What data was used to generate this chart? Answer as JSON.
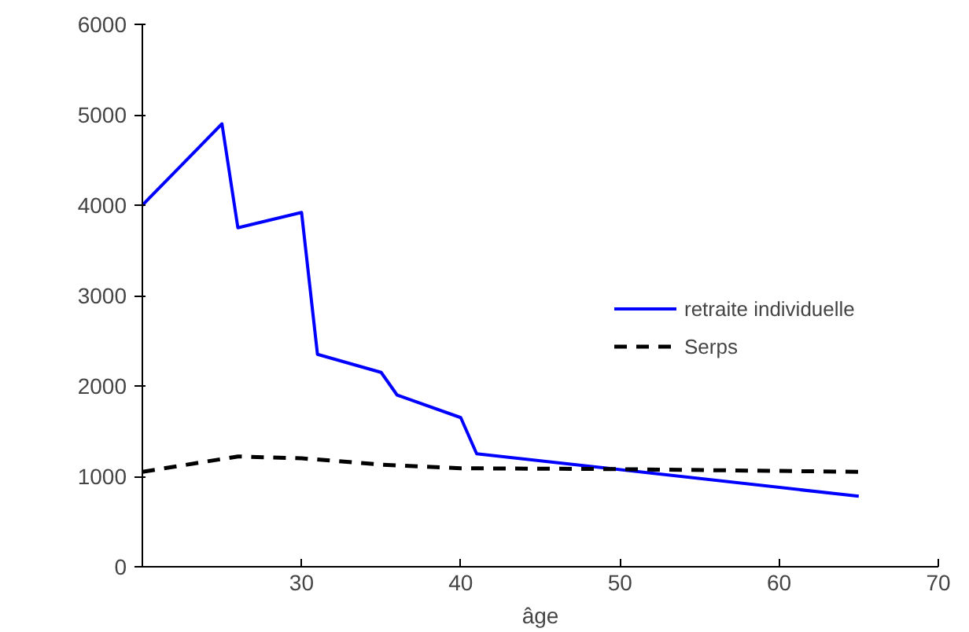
{
  "chart_data": {
    "type": "line",
    "xlabel": "âge",
    "x": [
      20,
      25,
      26,
      30,
      31,
      35,
      36,
      40,
      41,
      65
    ],
    "series": [
      {
        "name": "retraite individuelle",
        "color": "#0000ff",
        "line_style": "solid",
        "values": [
          4000,
          4900,
          3750,
          3920,
          2350,
          2150,
          1900,
          1650,
          1250,
          780
        ]
      },
      {
        "name": "Serps",
        "color": "#000000",
        "line_style": "dashed",
        "x": [
          20,
          26,
          30,
          35,
          40,
          50,
          65
        ],
        "values": [
          1050,
          1220,
          1200,
          1130,
          1090,
          1080,
          1050
        ]
      }
    ],
    "xlim": [
      20,
      70
    ],
    "ylim": [
      0,
      6000
    ],
    "xticks": [
      30,
      40,
      50,
      60,
      70
    ],
    "yticks": [
      0,
      1000,
      2000,
      3000,
      4000,
      5000,
      6000
    ],
    "grid": false,
    "legend": "right",
    "marker": "none"
  }
}
